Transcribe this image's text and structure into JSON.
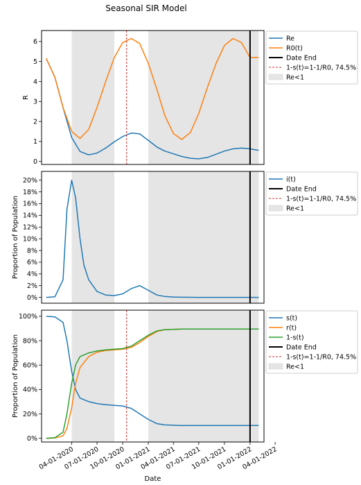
{
  "figure_title": "Seasonal SIR Model",
  "colors": {
    "blue": "#1f77b4",
    "orange": "#ff7f0e",
    "green": "#2ca02c",
    "red": "#d62728",
    "shade": "#e5e5e5",
    "black": "#000000"
  },
  "chart_data": [
    {
      "type": "line",
      "title": "",
      "xlabel": "",
      "ylabel": "R",
      "ylim": [
        -0.15,
        6.55
      ],
      "yticks": [
        0,
        1,
        2,
        3,
        4,
        5,
        6
      ],
      "ytick_labels": [
        "0",
        "1",
        "2",
        "3",
        "4",
        "5",
        "6"
      ],
      "legend_position": "outside-right",
      "grid": false,
      "series": [
        {
          "name": "Re",
          "color": "#1f77b4",
          "x": [
            "2020-01-01",
            "2020-02-01",
            "2020-03-01",
            "2020-04-01",
            "2020-05-01",
            "2020-06-01",
            "2020-07-01",
            "2020-08-01",
            "2020-09-01",
            "2020-10-01",
            "2020-11-01",
            "2020-12-01",
            "2021-01-01",
            "2021-02-01",
            "2021-03-01",
            "2021-04-01",
            "2021-05-01",
            "2021-06-01",
            "2021-07-01",
            "2021-08-01",
            "2021-09-01",
            "2021-10-01",
            "2021-11-01",
            "2021-12-01",
            "2022-01-01",
            "2022-02-01"
          ],
          "y": [
            5.15,
            4.2,
            2.7,
            1.2,
            0.5,
            0.33,
            0.42,
            0.67,
            0.98,
            1.25,
            1.42,
            1.38,
            1.05,
            0.72,
            0.52,
            0.38,
            0.25,
            0.16,
            0.13,
            0.2,
            0.36,
            0.52,
            0.63,
            0.67,
            0.63,
            0.55
          ]
        },
        {
          "name": "R0(t)",
          "color": "#ff7f0e",
          "x": [
            "2020-01-01",
            "2020-02-01",
            "2020-03-01",
            "2020-04-01",
            "2020-05-01",
            "2020-06-01",
            "2020-07-01",
            "2020-08-01",
            "2020-09-01",
            "2020-10-01",
            "2020-11-01",
            "2020-12-01",
            "2021-01-01",
            "2021-02-01",
            "2021-03-01",
            "2021-04-01",
            "2021-05-01",
            "2021-06-01",
            "2021-07-01",
            "2021-08-01",
            "2021-09-01",
            "2021-10-01",
            "2021-11-01",
            "2021-12-01",
            "2022-01-01",
            "2022-02-01"
          ],
          "y": [
            5.15,
            4.2,
            2.7,
            1.5,
            1.15,
            1.6,
            2.7,
            4.0,
            5.2,
            5.95,
            6.15,
            5.9,
            4.9,
            3.6,
            2.3,
            1.4,
            1.1,
            1.45,
            2.4,
            3.7,
            4.9,
            5.8,
            6.15,
            5.95,
            5.2,
            5.2
          ]
        }
      ],
      "vlines": [
        {
          "name": "Date End",
          "x": "2022-01-01",
          "color": "#000000",
          "style": "solid"
        },
        {
          "name": "1-s(t)=1-1/R0, 74.5%",
          "x": "2020-10-15",
          "color": "#d62728",
          "style": "dashed"
        }
      ],
      "shaded_regions": [
        {
          "name": "Re<1",
          "from": "2020-04-01",
          "to": "2020-09-01"
        },
        {
          "name": "Re<1",
          "from": "2021-01-01",
          "to": "2022-02-01"
        }
      ],
      "legend": [
        "Re",
        "R0(t)",
        "Date End",
        "1-s(t)=1-1/R0, 74.5%",
        "Re<1"
      ]
    },
    {
      "type": "line",
      "title": "",
      "xlabel": "",
      "ylabel": "Proportion of Population",
      "ylim": [
        -0.01,
        0.215
      ],
      "yticks": [
        0,
        0.02,
        0.04,
        0.06,
        0.08,
        0.1,
        0.12,
        0.14,
        0.16,
        0.18,
        0.2
      ],
      "ytick_labels": [
        "0%",
        "2%",
        "4%",
        "6%",
        "8%",
        "10%",
        "12%",
        "14%",
        "16%",
        "18%",
        "20%"
      ],
      "legend_position": "outside-right",
      "grid": false,
      "series": [
        {
          "name": "i(t)",
          "color": "#1f77b4",
          "x": [
            "2020-01-01",
            "2020-02-01",
            "2020-03-01",
            "2020-03-15",
            "2020-04-01",
            "2020-04-15",
            "2020-05-01",
            "2020-05-15",
            "2020-06-01",
            "2020-07-01",
            "2020-08-01",
            "2020-09-01",
            "2020-10-01",
            "2020-11-01",
            "2020-12-01",
            "2021-01-01",
            "2021-02-01",
            "2021-03-01",
            "2021-04-01",
            "2021-05-01",
            "2021-07-01",
            "2021-10-01",
            "2022-01-01",
            "2022-02-01"
          ],
          "y": [
            0.0,
            0.001,
            0.03,
            0.15,
            0.2,
            0.17,
            0.1,
            0.055,
            0.03,
            0.01,
            0.004,
            0.003,
            0.006,
            0.015,
            0.02,
            0.012,
            0.004,
            0.0015,
            0.0005,
            0.0002,
            0.0,
            0.0,
            0.0,
            0.0
          ]
        }
      ],
      "vlines": [
        {
          "name": "Date End",
          "x": "2022-01-01",
          "color": "#000000",
          "style": "solid"
        }
      ],
      "shaded_regions": [
        {
          "name": "Re<1",
          "from": "2020-04-01",
          "to": "2020-09-01"
        },
        {
          "name": "Re<1",
          "from": "2021-01-01",
          "to": "2022-02-01"
        }
      ],
      "legend": [
        "i(t)",
        "Date End",
        "1-s(t)=1-1/R0, 74.5%",
        "Re<1"
      ]
    },
    {
      "type": "line",
      "title": "",
      "xlabel": "Date",
      "ylabel": "Proportion of Population",
      "ylim": [
        -0.03,
        1.05
      ],
      "yticks": [
        0,
        0.2,
        0.4,
        0.6,
        0.8,
        1.0
      ],
      "ytick_labels": [
        "0%",
        "20%",
        "40%",
        "60%",
        "80%",
        "100%"
      ],
      "xticks": [
        "2020-04-01",
        "2020-07-01",
        "2020-10-01",
        "2021-01-01",
        "2021-04-01",
        "2021-07-01",
        "2021-10-01",
        "2022-01-01",
        "2022-04-01"
      ],
      "xtick_labels": [
        "04-01-2020",
        "07-01-2020",
        "10-01-2020",
        "01-01-2021",
        "04-01-2021",
        "07-01-2021",
        "10-01-2021",
        "01-01-2022",
        "04-01-2022"
      ],
      "legend_position": "outside-right",
      "grid": false,
      "series": [
        {
          "name": "s(t)",
          "color": "#1f77b4",
          "x": [
            "2020-01-01",
            "2020-02-01",
            "2020-03-01",
            "2020-03-15",
            "2020-04-01",
            "2020-04-15",
            "2020-05-01",
            "2020-06-01",
            "2020-07-01",
            "2020-08-01",
            "2020-09-01",
            "2020-10-01",
            "2020-11-01",
            "2020-12-01",
            "2021-01-01",
            "2021-02-01",
            "2021-03-01",
            "2021-05-01",
            "2021-08-01",
            "2021-11-01",
            "2022-02-01"
          ],
          "y": [
            1.0,
            0.995,
            0.95,
            0.8,
            0.55,
            0.4,
            0.33,
            0.3,
            0.285,
            0.275,
            0.27,
            0.265,
            0.245,
            0.2,
            0.155,
            0.12,
            0.11,
            0.105,
            0.105,
            0.105,
            0.105
          ]
        },
        {
          "name": "r(t)",
          "color": "#ff7f0e",
          "x": [
            "2020-01-01",
            "2020-02-01",
            "2020-03-01",
            "2020-03-15",
            "2020-04-01",
            "2020-04-15",
            "2020-05-01",
            "2020-06-01",
            "2020-07-01",
            "2020-08-01",
            "2020-09-01",
            "2020-10-01",
            "2020-11-01",
            "2020-12-01",
            "2021-01-01",
            "2021-02-01",
            "2021-03-01",
            "2021-05-01",
            "2021-08-01",
            "2021-11-01",
            "2022-02-01"
          ],
          "y": [
            0.0,
            0.003,
            0.02,
            0.08,
            0.25,
            0.45,
            0.58,
            0.67,
            0.705,
            0.72,
            0.725,
            0.73,
            0.745,
            0.785,
            0.835,
            0.875,
            0.89,
            0.895,
            0.895,
            0.895,
            0.895
          ]
        },
        {
          "name": "1-s(t)",
          "color": "#2ca02c",
          "x": [
            "2020-01-01",
            "2020-02-01",
            "2020-03-01",
            "2020-03-15",
            "2020-04-01",
            "2020-04-15",
            "2020-05-01",
            "2020-06-01",
            "2020-07-01",
            "2020-08-01",
            "2020-09-01",
            "2020-10-01",
            "2020-11-01",
            "2020-12-01",
            "2021-01-01",
            "2021-02-01",
            "2021-03-01",
            "2021-05-01",
            "2021-08-01",
            "2021-11-01",
            "2022-02-01"
          ],
          "y": [
            0.0,
            0.005,
            0.05,
            0.2,
            0.45,
            0.6,
            0.67,
            0.7,
            0.715,
            0.725,
            0.73,
            0.735,
            0.755,
            0.8,
            0.845,
            0.88,
            0.89,
            0.895,
            0.895,
            0.895,
            0.895
          ]
        }
      ],
      "vlines": [
        {
          "name": "Date End",
          "x": "2022-01-01",
          "color": "#000000",
          "style": "solid"
        },
        {
          "name": "1-s(t)=1-1/R0, 74.5%",
          "x": "2020-10-15",
          "color": "#d62728",
          "style": "dashed"
        }
      ],
      "shaded_regions": [
        {
          "name": "Re<1",
          "from": "2020-04-01",
          "to": "2020-09-01"
        },
        {
          "name": "Re<1",
          "from": "2021-01-01",
          "to": "2022-02-01"
        }
      ],
      "legend": [
        "s(t)",
        "r(t)",
        "1-s(t)",
        "Date End",
        "1-s(t)=1-1/R0, 74.5%",
        "Re<1"
      ]
    }
  ]
}
